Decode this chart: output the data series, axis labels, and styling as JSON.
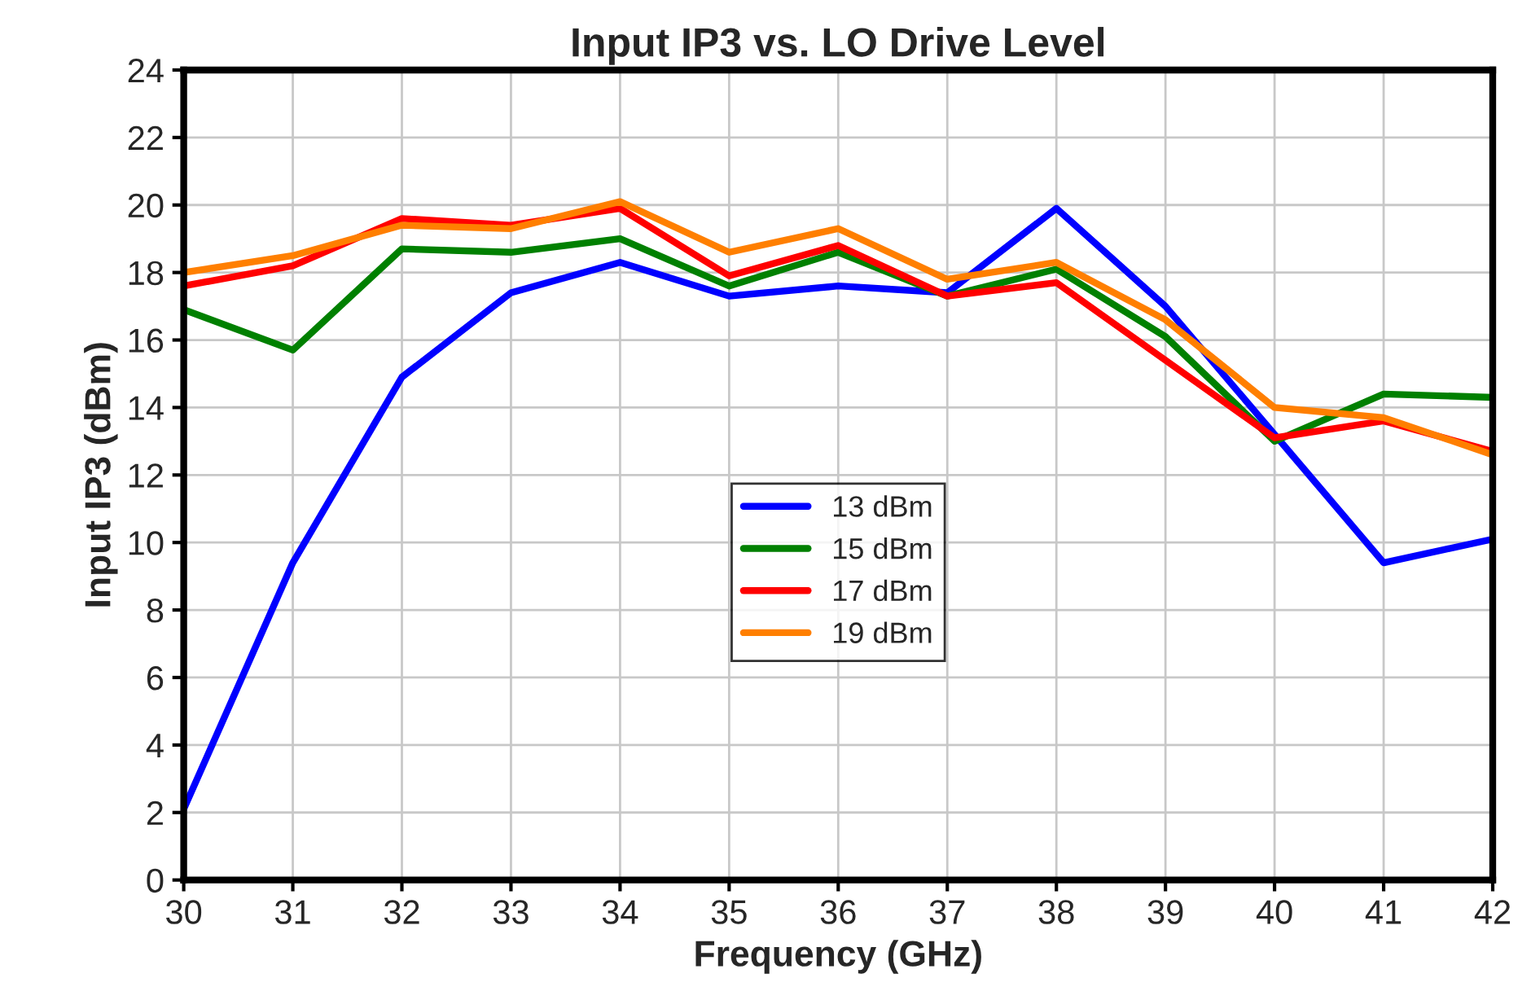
{
  "chart_data": {
    "type": "line",
    "title": "Input IP3 vs. LO Drive Level",
    "xlabel": "Frequency (GHz)",
    "ylabel": "Input IP3 (dBm)",
    "x": [
      30,
      31,
      32,
      33,
      34,
      35,
      36,
      37,
      38,
      39,
      40,
      41,
      42
    ],
    "series": [
      {
        "name": "13 dBm",
        "color": "#0000ff",
        "values": [
          2.1,
          9.4,
          14.9,
          17.4,
          18.3,
          17.3,
          17.6,
          17.4,
          19.9,
          17.0,
          13.2,
          9.4,
          10.1
        ]
      },
      {
        "name": "15 dBm",
        "color": "#008000",
        "values": [
          16.9,
          15.7,
          18.7,
          18.6,
          19.0,
          17.6,
          18.6,
          17.3,
          18.1,
          16.1,
          13.0,
          14.4,
          14.3
        ]
      },
      {
        "name": "17 dBm",
        "color": "#ff0000",
        "values": [
          17.6,
          18.2,
          19.6,
          19.4,
          19.9,
          17.9,
          18.8,
          17.3,
          17.7,
          15.4,
          13.1,
          13.6,
          12.7
        ]
      },
      {
        "name": "19 dBm",
        "color": "#ff7f00",
        "values": [
          18.0,
          18.5,
          19.4,
          19.3,
          20.1,
          18.6,
          19.3,
          17.8,
          18.3,
          16.6,
          14.0,
          13.7,
          12.6
        ]
      }
    ],
    "xlim": [
      30,
      42
    ],
    "xticks": [
      30,
      31,
      32,
      33,
      34,
      35,
      36,
      37,
      38,
      39,
      40,
      41,
      42
    ],
    "ylim": [
      0,
      24
    ],
    "yticks": [
      0,
      2,
      4,
      6,
      8,
      10,
      12,
      14,
      16,
      18,
      20,
      22,
      24
    ],
    "grid": true,
    "legend": "center",
    "marker": "none",
    "line_style": "solid"
  }
}
